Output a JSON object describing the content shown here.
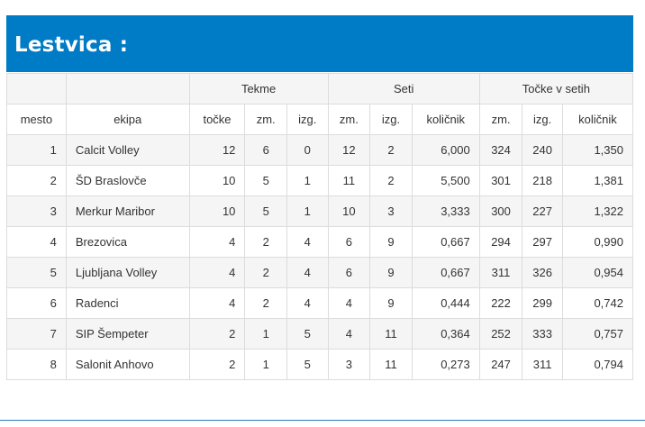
{
  "title": "Lestvica :",
  "header": {
    "group_tekme": "Tekme",
    "group_seti": "Seti",
    "group_tocke": "Točke v setih",
    "col_mesto": "mesto",
    "col_ekipa": "ekipa",
    "col_tocke": "točke",
    "col_tekme_zm": "zm.",
    "col_tekme_izg": "izg.",
    "col_seti_zm": "zm.",
    "col_seti_izg": "izg.",
    "col_seti_kolicnik": "količnik",
    "col_tv_zm": "zm.",
    "col_tv_izg": "izg.",
    "col_tv_kolicnik": "količnik"
  },
  "rows": [
    {
      "mesto": "1",
      "ekipa": "Calcit Volley",
      "tocke": "12",
      "tekme_zm": "6",
      "tekme_izg": "0",
      "seti_zm": "12",
      "seti_izg": "2",
      "seti_kolicnik": "6,000",
      "tv_zm": "324",
      "tv_izg": "240",
      "tv_kolicnik": "1,350"
    },
    {
      "mesto": "2",
      "ekipa": "ŠD Braslovče",
      "tocke": "10",
      "tekme_zm": "5",
      "tekme_izg": "1",
      "seti_zm": "11",
      "seti_izg": "2",
      "seti_kolicnik": "5,500",
      "tv_zm": "301",
      "tv_izg": "218",
      "tv_kolicnik": "1,381"
    },
    {
      "mesto": "3",
      "ekipa": "Merkur Maribor",
      "tocke": "10",
      "tekme_zm": "5",
      "tekme_izg": "1",
      "seti_zm": "10",
      "seti_izg": "3",
      "seti_kolicnik": "3,333",
      "tv_zm": "300",
      "tv_izg": "227",
      "tv_kolicnik": "1,322"
    },
    {
      "mesto": "4",
      "ekipa": "Brezovica",
      "tocke": "4",
      "tekme_zm": "2",
      "tekme_izg": "4",
      "seti_zm": "6",
      "seti_izg": "9",
      "seti_kolicnik": "0,667",
      "tv_zm": "294",
      "tv_izg": "297",
      "tv_kolicnik": "0,990"
    },
    {
      "mesto": "5",
      "ekipa": "Ljubljana Volley",
      "tocke": "4",
      "tekme_zm": "2",
      "tekme_izg": "4",
      "seti_zm": "6",
      "seti_izg": "9",
      "seti_kolicnik": "0,667",
      "tv_zm": "311",
      "tv_izg": "326",
      "tv_kolicnik": "0,954"
    },
    {
      "mesto": "6",
      "ekipa": "Radenci",
      "tocke": "4",
      "tekme_zm": "2",
      "tekme_izg": "4",
      "seti_zm": "4",
      "seti_izg": "9",
      "seti_kolicnik": "0,444",
      "tv_zm": "222",
      "tv_izg": "299",
      "tv_kolicnik": "0,742"
    },
    {
      "mesto": "7",
      "ekipa": "SIP Šempeter",
      "tocke": "2",
      "tekme_zm": "1",
      "tekme_izg": "5",
      "seti_zm": "4",
      "seti_izg": "11",
      "seti_kolicnik": "0,364",
      "tv_zm": "252",
      "tv_izg": "333",
      "tv_kolicnik": "0,757"
    },
    {
      "mesto": "8",
      "ekipa": "Salonit Anhovo",
      "tocke": "2",
      "tekme_zm": "1",
      "tekme_izg": "5",
      "seti_zm": "3",
      "seti_izg": "11",
      "seti_kolicnik": "0,273",
      "tv_zm": "247",
      "tv_izg": "311",
      "tv_kolicnik": "0,794"
    }
  ],
  "colors": {
    "title_bar": "#007bc6",
    "row_stripe": "#f5f5f5",
    "border": "#dcdcdc"
  }
}
